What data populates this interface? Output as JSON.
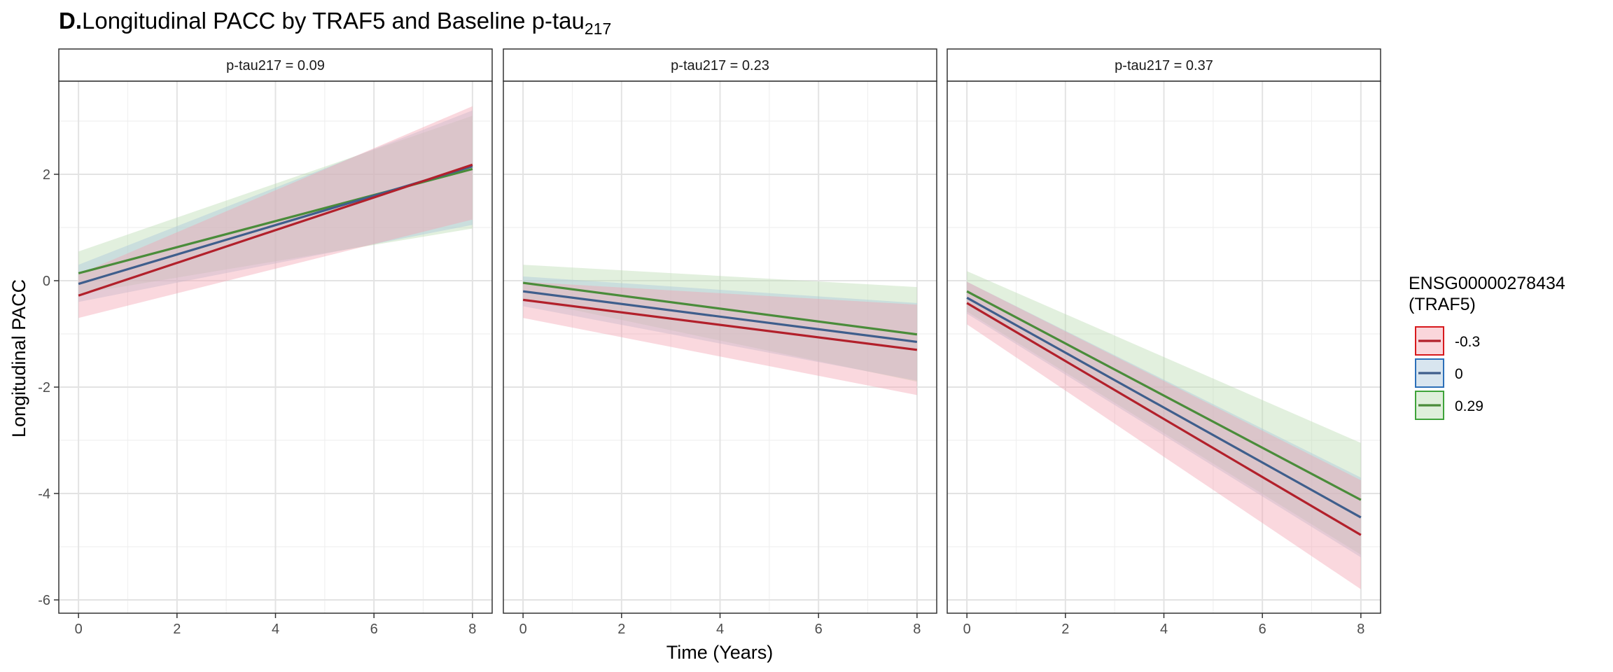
{
  "chart_data": {
    "type": "line",
    "title_prefix": "D.",
    "title_main": "Longitudinal PACC by TRAF5 and Baseline p-tau",
    "title_subscript": "217",
    "xlabel": "Time (Years)",
    "ylabel": "Longitudinal PACC",
    "xlim": [
      -0.4,
      8.4
    ],
    "ylim": [
      -6.25,
      3.75
    ],
    "x_ticks": [
      0,
      2,
      4,
      6,
      8
    ],
    "y_ticks": [
      -6,
      -4,
      -2,
      0,
      2
    ],
    "y_tick_labels": [
      "-6",
      "-4",
      "-2",
      "0",
      "2"
    ],
    "x_tick_labels": [
      "0",
      "2",
      "4",
      "6",
      "8"
    ],
    "grid": true,
    "legend": {
      "title_line1": "ENSG00000278434",
      "title_line2": "(TRAF5)",
      "placement": "right",
      "entries": [
        "-0.3",
        "0",
        "0.29"
      ]
    },
    "series_colors": {
      "-0.3": {
        "line": "#b2202b",
        "fill": "#f4a3b0",
        "border": "#d7191c"
      },
      "0": {
        "line": "#3f5e8c",
        "fill": "#a9c6dc",
        "border": "#2c6fb8"
      },
      "0.29": {
        "line": "#4a8c3a",
        "fill": "#b9dcb0",
        "border": "#3fa33a"
      }
    },
    "panels": [
      {
        "label": "p-tau217 = 0.09",
        "series": [
          {
            "name": "-0.3",
            "x": [
              0,
              8
            ],
            "y": [
              -0.28,
              2.18
            ],
            "lower": [
              -0.7,
              1.15
            ],
            "upper": [
              0.12,
              3.28
            ]
          },
          {
            "name": "0",
            "x": [
              0,
              8
            ],
            "y": [
              -0.06,
              2.15
            ],
            "lower": [
              -0.4,
              1.05
            ],
            "upper": [
              0.3,
              3.2
            ]
          },
          {
            "name": "0.29",
            "x": [
              0,
              8
            ],
            "y": [
              0.14,
              2.1
            ],
            "lower": [
              -0.25,
              0.98
            ],
            "upper": [
              0.55,
              3.1
            ]
          }
        ]
      },
      {
        "label": "p-tau217 = 0.23",
        "series": [
          {
            "name": "-0.3",
            "x": [
              0,
              8
            ],
            "y": [
              -0.36,
              -1.3
            ],
            "lower": [
              -0.7,
              -2.15
            ],
            "upper": [
              -0.02,
              -0.45
            ]
          },
          {
            "name": "0",
            "x": [
              0,
              8
            ],
            "y": [
              -0.2,
              -1.15
            ],
            "lower": [
              -0.48,
              -1.88
            ],
            "upper": [
              0.08,
              -0.42
            ]
          },
          {
            "name": "0.29",
            "x": [
              0,
              8
            ],
            "y": [
              -0.04,
              -1.01
            ],
            "lower": [
              -0.35,
              -1.9
            ],
            "upper": [
              0.3,
              -0.12
            ]
          }
        ]
      },
      {
        "label": "p-tau217 = 0.37",
        "series": [
          {
            "name": "-0.3",
            "x": [
              0,
              8
            ],
            "y": [
              -0.42,
              -4.78
            ],
            "lower": [
              -0.82,
              -5.8
            ],
            "upper": [
              -0.02,
              -3.75
            ]
          },
          {
            "name": "0",
            "x": [
              0,
              8
            ],
            "y": [
              -0.32,
              -4.45
            ],
            "lower": [
              -0.62,
              -5.2
            ],
            "upper": [
              -0.02,
              -3.7
            ]
          },
          {
            "name": "0.29",
            "x": [
              0,
              8
            ],
            "y": [
              -0.2,
              -4.12
            ],
            "lower": [
              -0.58,
              -5.15
            ],
            "upper": [
              0.18,
              -3.05
            ]
          }
        ]
      }
    ]
  }
}
